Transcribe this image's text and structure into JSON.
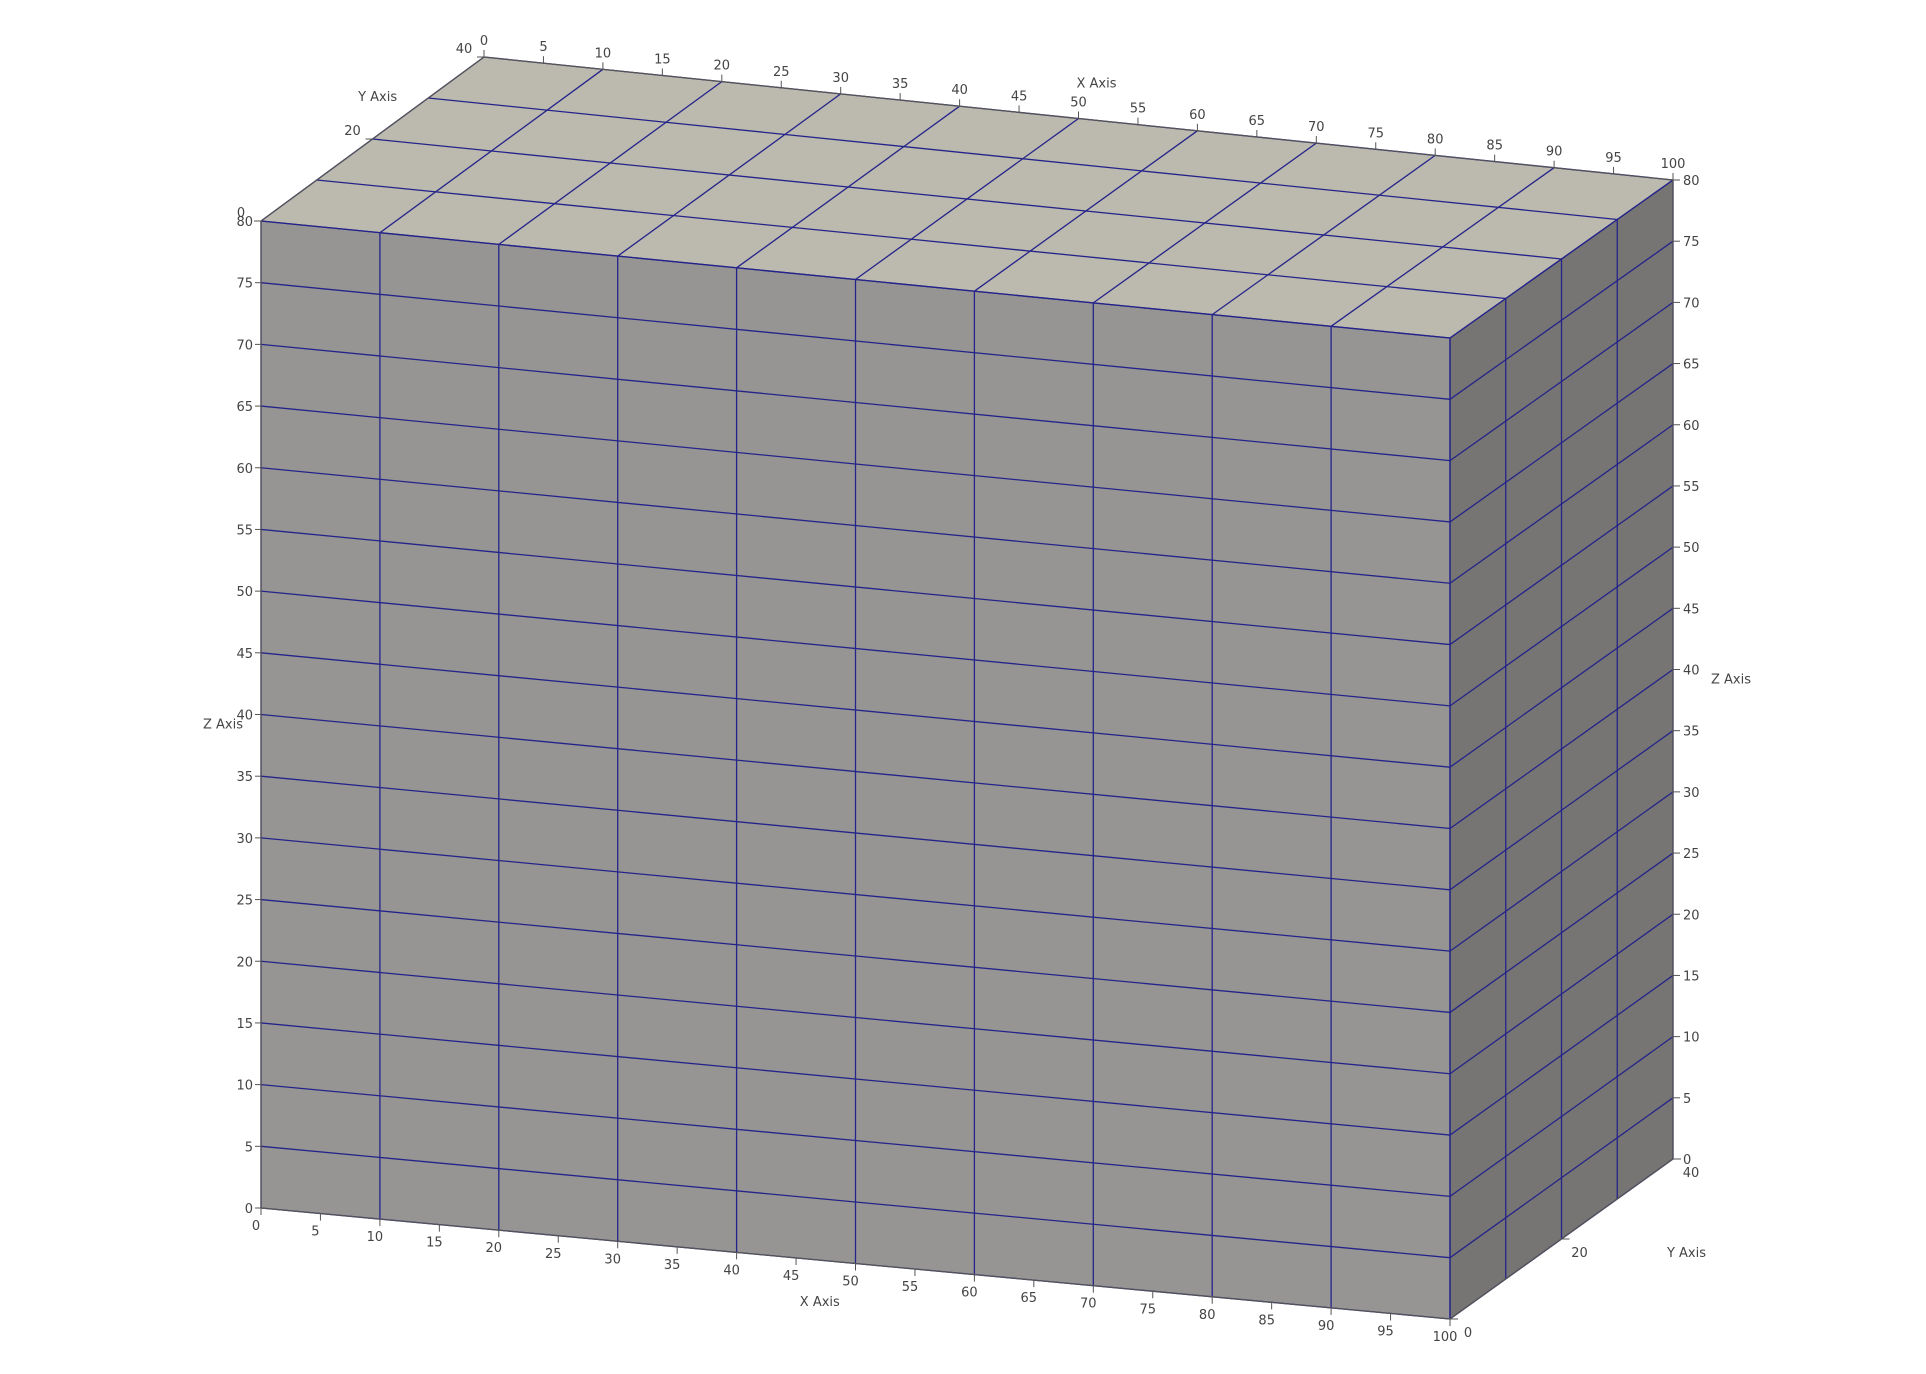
{
  "scene": {
    "domain": {
      "x": [
        0,
        100
      ],
      "y": [
        0,
        40
      ],
      "z": [
        0,
        80
      ]
    },
    "grid": {
      "x_cells": 10,
      "y_cells": 4,
      "z_cells": 16
    },
    "colors": {
      "background": "#ffffff",
      "face_front": "#979593",
      "face_top": "#bcb9ae",
      "face_side": "#767573",
      "grid_lines": "#24248a",
      "axis_lines": "#555555",
      "labels": "#444444"
    }
  },
  "axes": {
    "x_top": {
      "title": "X Axis",
      "ticks": [
        "0",
        "5",
        "10",
        "15",
        "20",
        "25",
        "30",
        "35",
        "40",
        "45",
        "50",
        "55",
        "60",
        "65",
        "70",
        "75",
        "80",
        "85",
        "90",
        "95",
        "100"
      ]
    },
    "x_bottom": {
      "title": "X Axis",
      "ticks": [
        "0",
        "5",
        "10",
        "15",
        "20",
        "25",
        "30",
        "35",
        "40",
        "45",
        "50",
        "55",
        "60",
        "65",
        "70",
        "75",
        "80",
        "85",
        "90",
        "95",
        "100"
      ]
    },
    "y_top_left": {
      "title": "Y Axis",
      "ticks": [
        "0",
        "20",
        "40"
      ]
    },
    "y_bottom_right": {
      "title": "Y Axis",
      "ticks": [
        "0",
        "20",
        "40"
      ]
    },
    "z_left": {
      "title": "Z Axis",
      "ticks": [
        "0",
        "5",
        "10",
        "15",
        "20",
        "25",
        "30",
        "35",
        "40",
        "45",
        "50",
        "55",
        "60",
        "65",
        "70",
        "75",
        "80"
      ]
    },
    "z_right": {
      "title": "Z Axis",
      "ticks": [
        "0",
        "5",
        "10",
        "15",
        "20",
        "25",
        "30",
        "35",
        "40",
        "45",
        "50",
        "55",
        "60",
        "65",
        "70",
        "75",
        "80"
      ]
    }
  }
}
